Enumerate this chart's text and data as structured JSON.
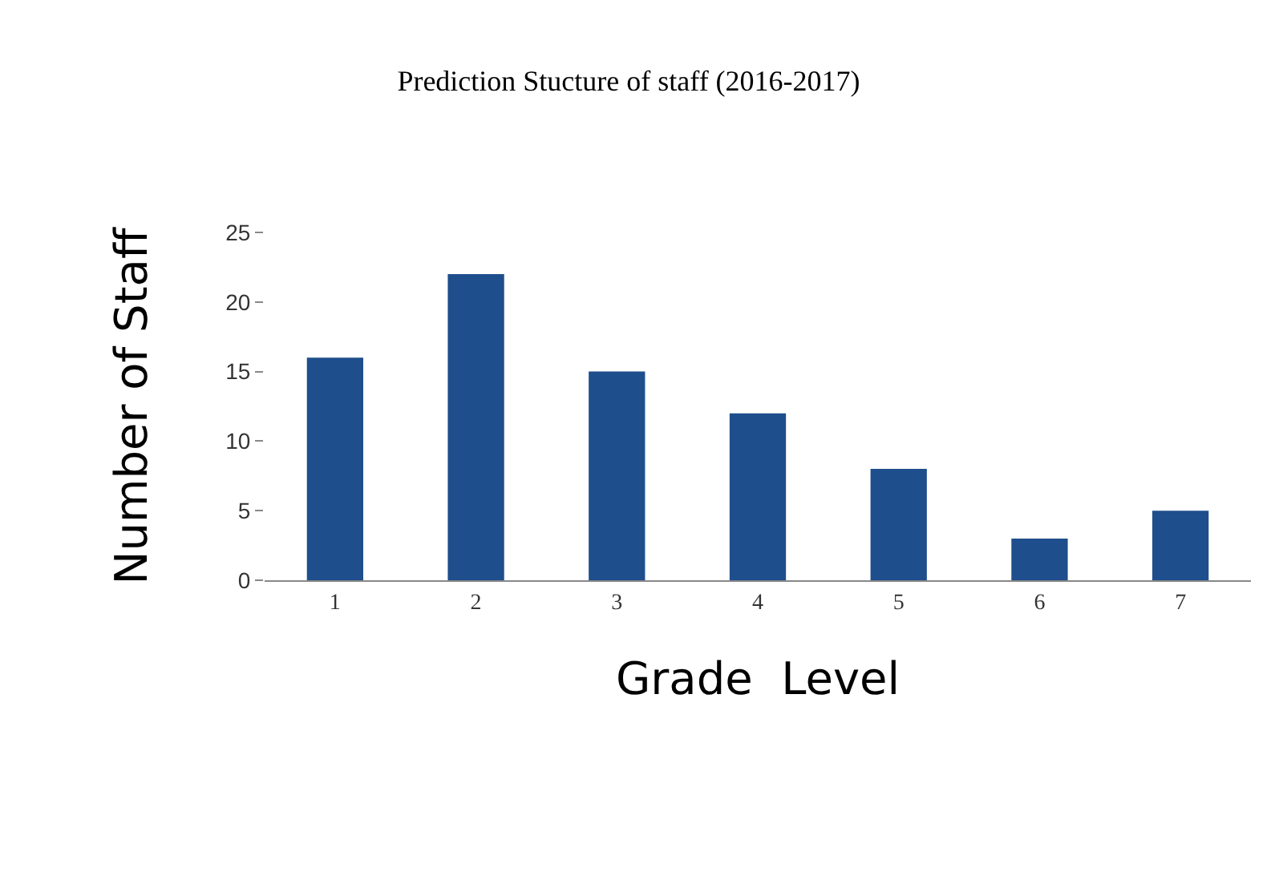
{
  "chart_data": {
    "type": "bar",
    "title": "Prediction Stucture of staff (2016-2017)",
    "xlabel": "Grade  Level",
    "ylabel": "Number of Staff",
    "categories": [
      "1",
      "2",
      "3",
      "4",
      "5",
      "6",
      "7"
    ],
    "values": [
      16,
      22,
      15,
      12,
      8,
      3,
      5
    ],
    "color": "#1f4e8c",
    "ylim": [
      0,
      25
    ],
    "yticks": [
      0,
      5,
      10,
      15,
      20,
      25
    ],
    "grid": false
  }
}
